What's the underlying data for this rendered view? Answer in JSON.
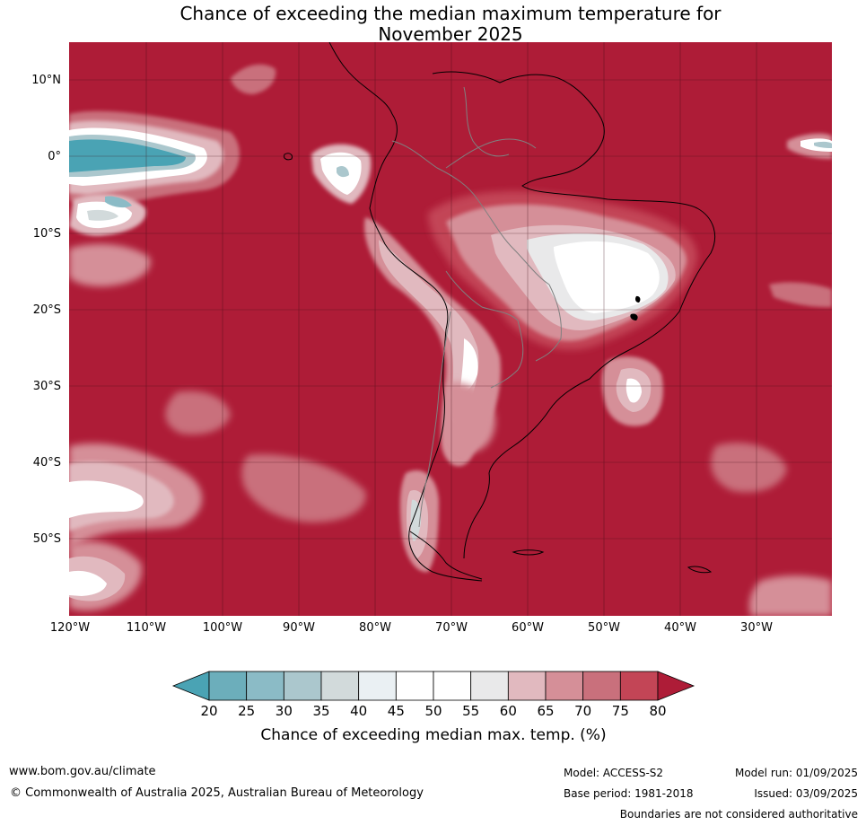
{
  "title_line1": "Chance of exceeding the median maximum temperature for",
  "title_line2": "November 2025",
  "lat_labels": [
    "10°N",
    "0°",
    "10°S",
    "20°S",
    "30°S",
    "40°S",
    "50°S"
  ],
  "lon_labels": [
    "120°W",
    "110°W",
    "100°W",
    "90°W",
    "80°W",
    "70°W",
    "60°W",
    "50°W",
    "40°W",
    "30°W"
  ],
  "legend": {
    "title": "Chance of exceeding median max. temp. (%)",
    "ticks": [
      "20",
      "25",
      "30",
      "35",
      "40",
      "45",
      "50",
      "55",
      "60",
      "65",
      "70",
      "75",
      "80"
    ],
    "colors": [
      "#4aa3b4",
      "#6caebb",
      "#8bbbc6",
      "#abc7cd",
      "#d2dadb",
      "#eaf0f3",
      "#ffffff",
      "#ffffff",
      "#e9e9ea",
      "#e1b9bf",
      "#d58f98",
      "#c9707c",
      "#c34556",
      "#ae1c37"
    ]
  },
  "footer": {
    "website": "www.bom.gov.au/climate",
    "copyright": "© Commonwealth of Australia 2025, Australian Bureau of Meteorology",
    "model": "Model: ACCESS-S2",
    "base_period": "Base period: 1981-2018",
    "model_run": "Model run: 01/09/2025",
    "issued": "Issued: 03/09/2025",
    "disclaimer": "Boundaries are not considered authoritative"
  }
}
